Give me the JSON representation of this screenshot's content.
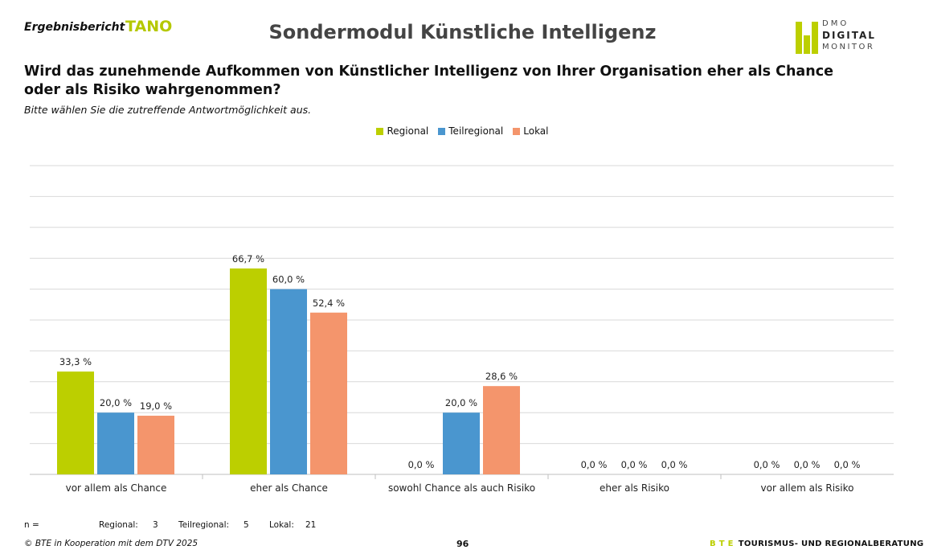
{
  "header": {
    "report_label": "Ergebnisbericht",
    "report_name": "TANO",
    "title": "Sondermodul Künstliche Intelligenz",
    "logo": {
      "line1": "DMO",
      "line2": "DIGITAL",
      "line3": "MONITOR"
    }
  },
  "question": "Wird das zunehmende Aufkommen von Künstlicher Intelligenz von Ihrer Organisation eher als Chance oder als Risiko wahrgenommen?",
  "instruction": "Bitte wählen Sie die zutreffende Antwortmöglichkeit aus.",
  "chart_data": {
    "type": "bar",
    "categories": [
      "vor allem als Chance",
      "eher als Chance",
      "sowohl Chance als auch Risiko",
      "eher als Risiko",
      "vor allem als Risiko"
    ],
    "series": [
      {
        "name": "Regional",
        "color": "#bccf00",
        "values": [
          33.3,
          66.7,
          0.0,
          0.0,
          0.0
        ],
        "labels": [
          "33,3 %",
          "66,7 %",
          "0,0 %",
          "0,0 %",
          "0,0 %"
        ]
      },
      {
        "name": "Teilregional",
        "color": "#4a96cf",
        "values": [
          20.0,
          60.0,
          20.0,
          0.0,
          0.0
        ],
        "labels": [
          "20,0 %",
          "60,0 %",
          "20,0 %",
          "0,0 %",
          "0,0 %"
        ]
      },
      {
        "name": "Lokal",
        "color": "#f4956c",
        "values": [
          19.0,
          52.4,
          28.6,
          0.0,
          0.0
        ],
        "labels": [
          "19,0 %",
          "52,4 %",
          "28,6 %",
          "0,0 %",
          "0,0 %"
        ]
      }
    ],
    "ylim": [
      0,
      100
    ],
    "grid": true,
    "legend": "top-center",
    "unit": "%"
  },
  "sample": {
    "n_label": "n =",
    "items": [
      {
        "label": "Regional:",
        "value": "3"
      },
      {
        "label": "Teilregional:",
        "value": "5"
      },
      {
        "label": "Lokal:",
        "value": "21"
      }
    ]
  },
  "footer": {
    "copyright": "© BTE in Kooperation mit dem DTV 2025",
    "page": "96",
    "brand_prefix": "B T E",
    "brand_text": "TOURISMUS- UND REGIONALBERATUNG"
  }
}
